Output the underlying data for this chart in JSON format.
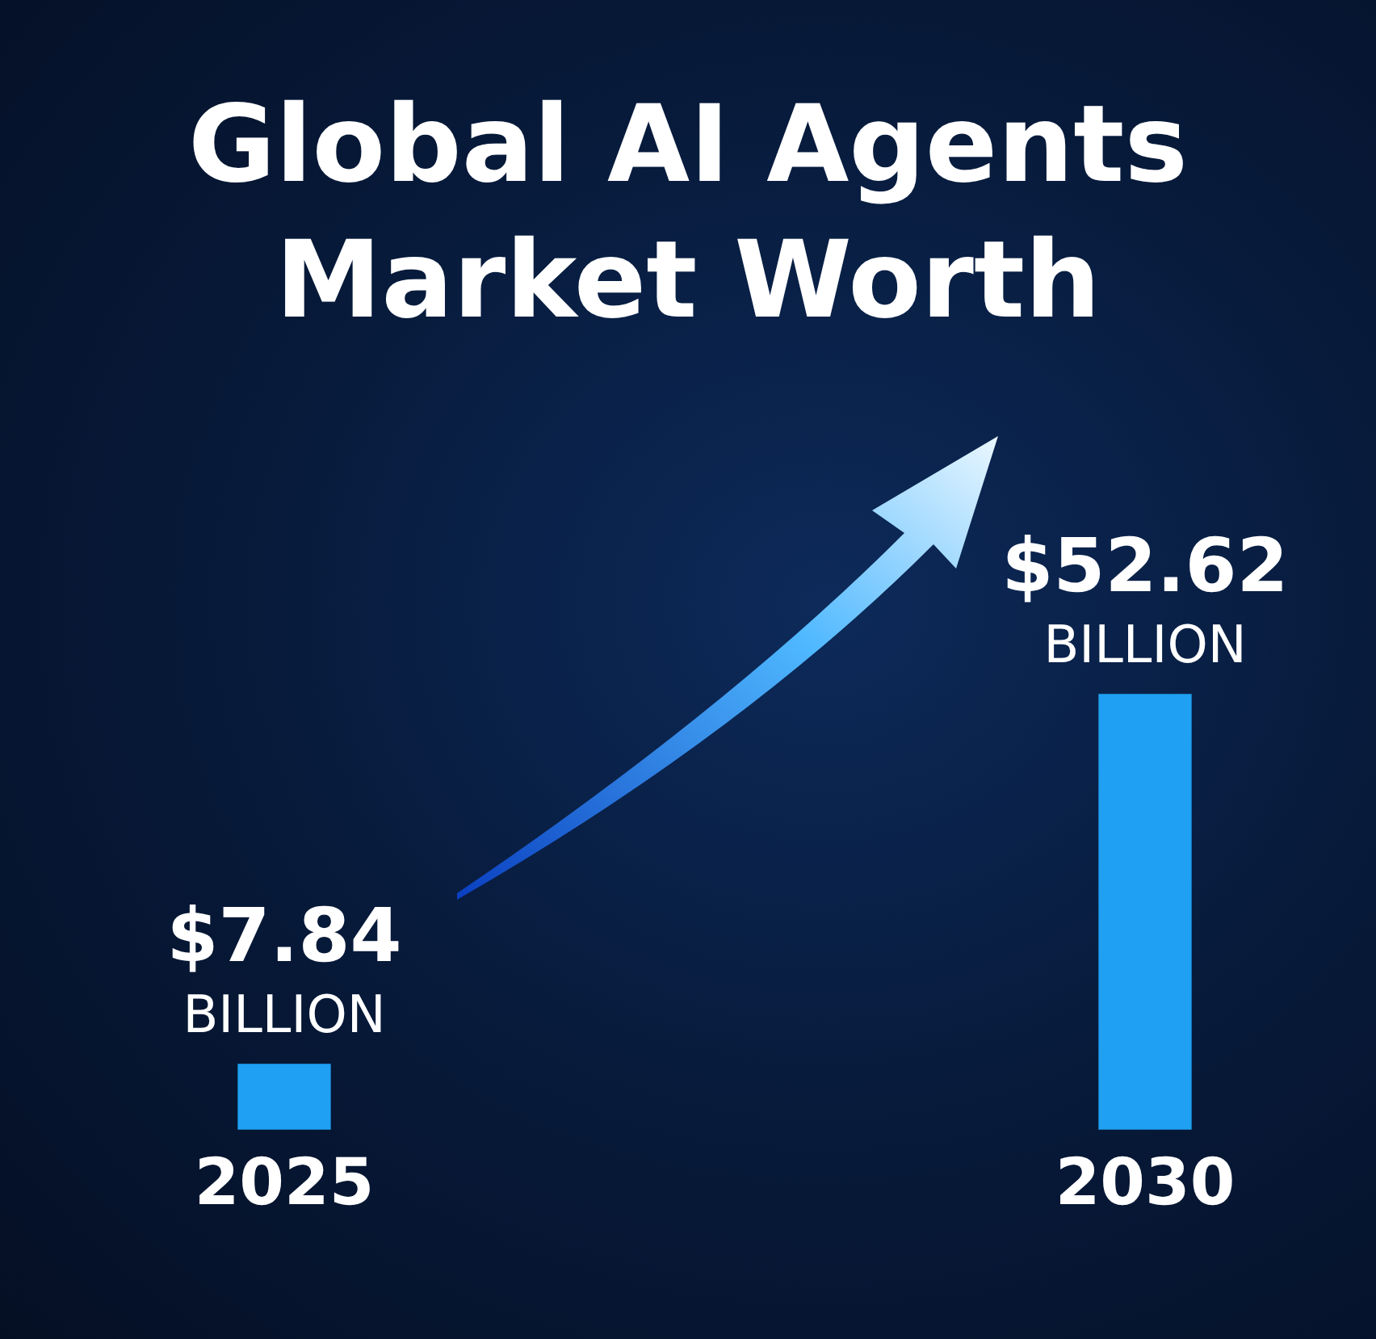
{
  "chart_data": {
    "type": "bar",
    "title": "Global AI Agents Market Worth",
    "categories": [
      "2025",
      "2030"
    ],
    "values": [
      7.84,
      52.62
    ],
    "color": "#1fa0f2",
    "value_labels": [
      "$7.84 BILLION",
      "$52.62 BILLION"
    ],
    "grid": false,
    "legend": false
  }
}
